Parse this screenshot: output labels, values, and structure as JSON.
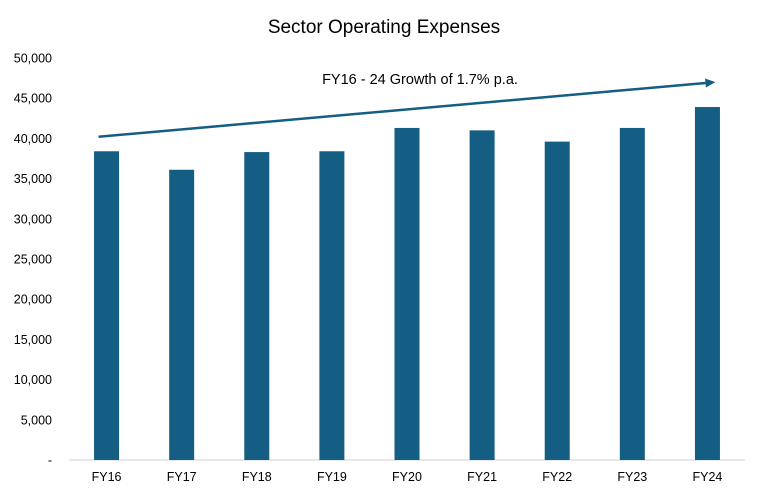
{
  "chart_data": {
    "type": "bar",
    "title": "Sector Operating Expenses",
    "xlabel": "",
    "ylabel": "",
    "categories": [
      "FY16",
      "FY17",
      "FY18",
      "FY19",
      "FY20",
      "FY21",
      "FY22",
      "FY23",
      "FY24"
    ],
    "values": [
      38400,
      36100,
      38300,
      38400,
      41300,
      41000,
      39600,
      41300,
      43900
    ],
    "ylim": [
      0,
      50000
    ],
    "y_ticks": [
      0,
      5000,
      10000,
      15000,
      20000,
      25000,
      30000,
      35000,
      40000,
      45000,
      50000
    ],
    "y_tick_labels": [
      "-",
      "5,000",
      "10,000",
      "15,000",
      "20,000",
      "25,000",
      "30,000",
      "35,000",
      "40,000",
      "45,000",
      "50,000"
    ],
    "grid": false,
    "legend": "none",
    "bar_color": "#155e83",
    "annotation": {
      "text": "FY16 - 24 Growth of 1.7% p.a.",
      "arrow_from": {
        "category": "FY16",
        "value": 40200
      },
      "arrow_to": {
        "category": "FY24",
        "value": 47000
      },
      "color": "#155e83"
    }
  }
}
